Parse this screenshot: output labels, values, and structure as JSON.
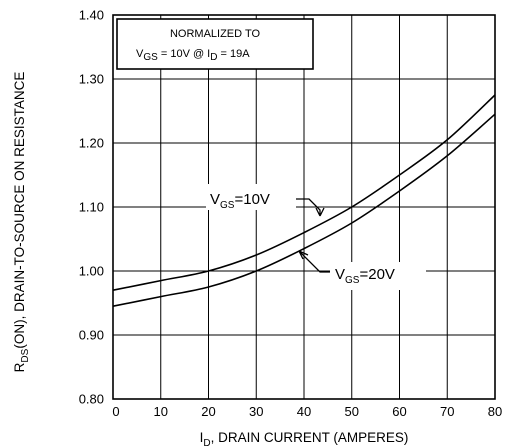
{
  "chart_data": {
    "type": "line",
    "xlabel": {
      "main": "I",
      "sub": "D",
      "rest": ", DRAIN CURRENT (AMPERES)"
    },
    "ylabel": {
      "main": "R",
      "sub": "DS",
      "rest": "(ON), DRAIN-TO-SOURCE ON RESISTANCE"
    },
    "xlim": [
      0,
      80
    ],
    "ylim": [
      0.8,
      1.4
    ],
    "x_ticks": [
      0,
      10,
      20,
      30,
      40,
      50,
      60,
      70,
      80
    ],
    "y_ticks": [
      0.8,
      0.9,
      1.0,
      1.1,
      1.2,
      1.3,
      1.4
    ],
    "x_tick_labels": [
      "0",
      "10",
      "20",
      "30",
      "40",
      "50",
      "60",
      "70",
      "80"
    ],
    "y_tick_labels": [
      "0.80",
      "0.90",
      "1.00",
      "1.10",
      "1.20",
      "1.30",
      "1.40"
    ],
    "grid": true,
    "annotation": {
      "line1": "NORMALIZED TO",
      "vgs_main": "V",
      "vgs_sub": "GS",
      "vgs_rest": " = 10V  @  I",
      "id_sub": "D",
      "id_rest": " = 19A"
    },
    "series": [
      {
        "name": "VGS=10V",
        "label_main": "V",
        "label_sub": "GS",
        "label_rest": "=10V",
        "x": [
          0,
          10,
          20,
          30,
          40,
          50,
          60,
          70,
          80
        ],
        "y": [
          0.97,
          0.985,
          1.0,
          1.025,
          1.06,
          1.1,
          1.15,
          1.205,
          1.275
        ]
      },
      {
        "name": "VGS=20V",
        "label_main": "V",
        "label_sub": "GS",
        "label_rest": "=20V",
        "x": [
          0,
          10,
          20,
          30,
          40,
          50,
          60,
          70,
          80
        ],
        "y": [
          0.945,
          0.96,
          0.975,
          1.0,
          1.035,
          1.075,
          1.125,
          1.18,
          1.245
        ]
      }
    ]
  }
}
